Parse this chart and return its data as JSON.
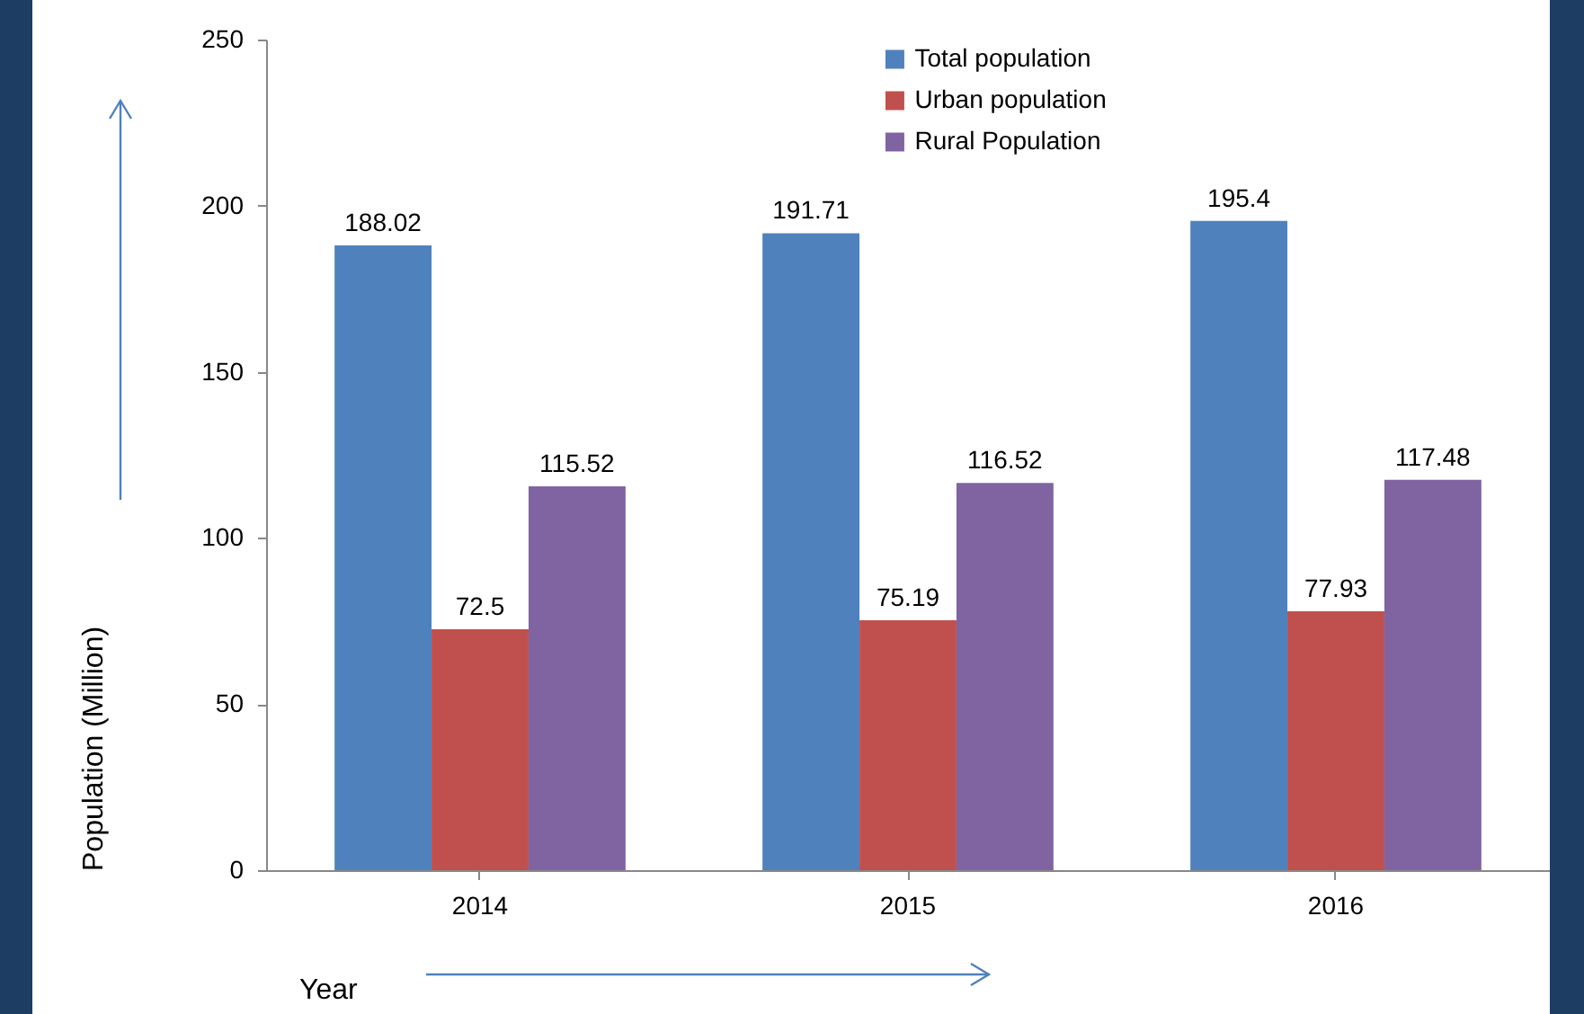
{
  "chart_data": {
    "type": "bar",
    "xlabel": "Year",
    "ylabel": "Population (Million)",
    "categories": [
      "2014",
      "2015",
      "2016"
    ],
    "series": [
      {
        "name": "Total population",
        "color": "#4f81bd",
        "values": [
          188.02,
          191.71,
          195.4
        ]
      },
      {
        "name": "Urban population",
        "color": "#c0504d",
        "values": [
          72.5,
          75.19,
          77.93
        ]
      },
      {
        "name": "Rural Population",
        "color": "#8064a2",
        "values": [
          115.52,
          116.52,
          117.48
        ]
      }
    ],
    "ylim": [
      0,
      250
    ],
    "yticks": [
      0,
      50,
      100,
      150,
      200,
      250
    ],
    "data_labels": true,
    "legend": "top",
    "grid": false
  }
}
